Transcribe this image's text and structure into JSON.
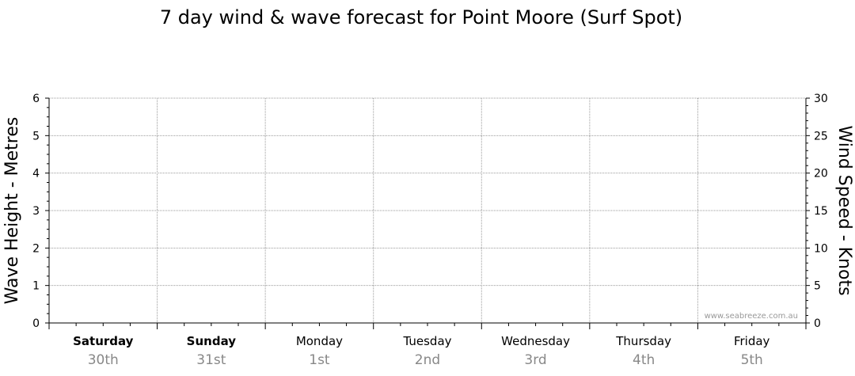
{
  "chart_data": {
    "type": "line",
    "title": "7 day wind & wave forecast for Point Moore (Surf Spot)",
    "ylabel_left": "Wave Height - Metres",
    "ylabel_right": "Wind Speed - Knots",
    "ylim_left": [
      0,
      6
    ],
    "ylim_right": [
      0,
      30
    ],
    "yticks_left": [
      "0",
      "1",
      "2",
      "3",
      "4",
      "5",
      "6"
    ],
    "yticks_right": [
      "0",
      "5",
      "10",
      "15",
      "20",
      "25",
      "30"
    ],
    "grid": true,
    "days": [
      {
        "day": "Saturday",
        "date": "30th",
        "bold": true
      },
      {
        "day": "Sunday",
        "date": "31st",
        "bold": true
      },
      {
        "day": "Monday",
        "date": "1st",
        "bold": false
      },
      {
        "day": "Tuesday",
        "date": "2nd",
        "bold": false
      },
      {
        "day": "Wednesday",
        "date": "3rd",
        "bold": false
      },
      {
        "day": "Thursday",
        "date": "4th",
        "bold": false
      },
      {
        "day": "Friday",
        "date": "5th",
        "bold": false
      }
    ],
    "series": [],
    "watermark": "www.seabreeze.com.au"
  },
  "colors": {
    "grid": "#9a9a9a",
    "axis": "#000000",
    "date_text": "#888888"
  }
}
